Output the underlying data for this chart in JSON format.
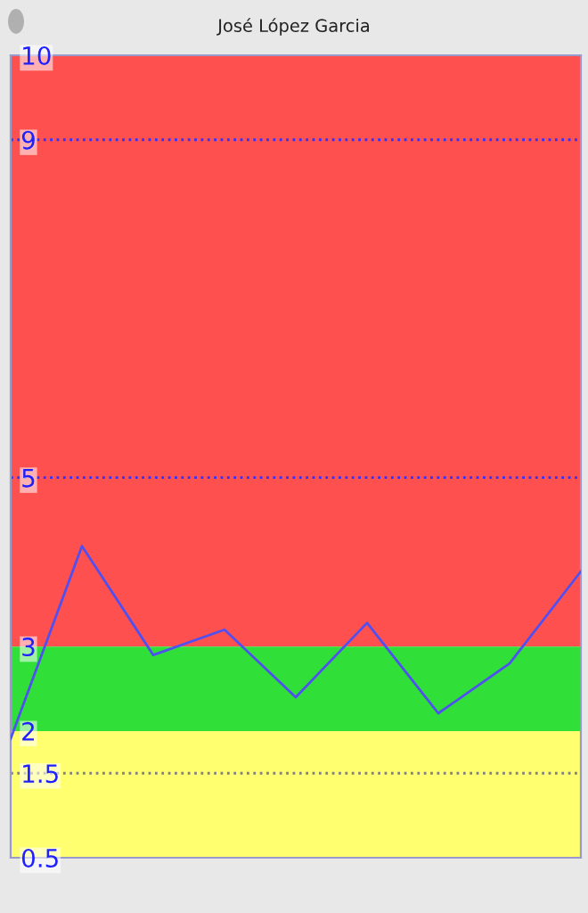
{
  "chart_data": {
    "type": "line",
    "title": "José López Garcia",
    "categories": [
      null,
      null,
      null,
      null,
      null,
      null,
      null,
      null,
      null
    ],
    "series": [
      {
        "color": "#5050f0",
        "values": [
          1.91,
          4.19,
          2.9,
          3.2,
          2.4,
          3.28,
          2.21,
          2.8,
          3.89
        ]
      }
    ],
    "ylim": [
      0.5,
      10
    ],
    "yticks": [
      0.5,
      1.5,
      2,
      3,
      5,
      9,
      10
    ],
    "tick_labels": "y",
    "ref_lines": [
      {
        "axis": "y",
        "value": 9,
        "color": "#3030ff",
        "line_style": "dotted"
      },
      {
        "axis": "y",
        "value": 5,
        "color": "#3030ff",
        "line_style": "dotted"
      },
      {
        "axis": "y",
        "value": 1.5,
        "color": "#808080",
        "line_style": "dotted"
      }
    ],
    "bands": [
      {
        "axis": "y",
        "from": 3,
        "to": 10,
        "color": "#ff5050"
      },
      {
        "axis": "y",
        "from": 2,
        "to": 3,
        "color": "#30e038"
      },
      {
        "axis": "y",
        "from": 0.5,
        "to": 2,
        "color": "#ffff70"
      }
    ],
    "grid": false,
    "marker": "none",
    "line_style": "solid"
  }
}
